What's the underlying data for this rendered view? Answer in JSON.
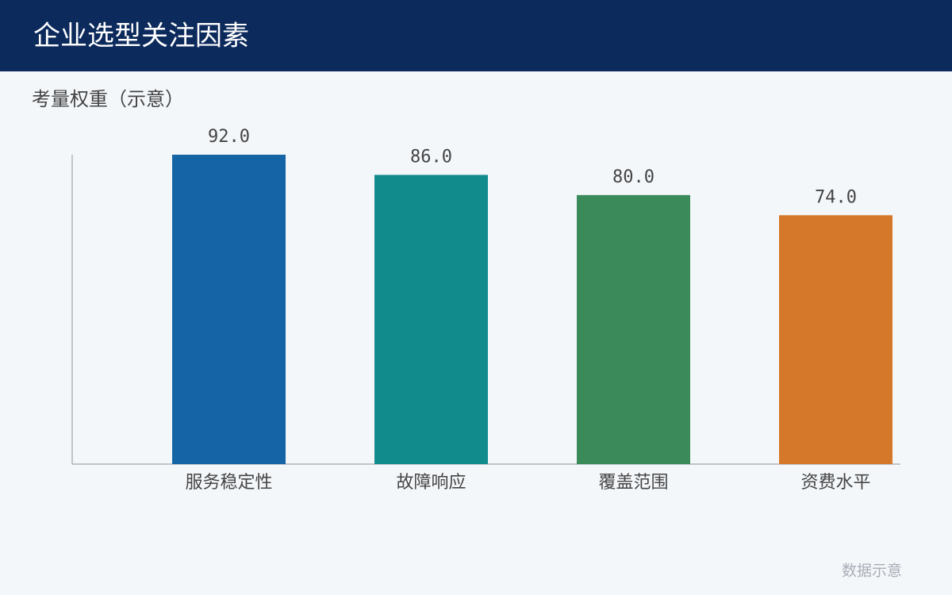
{
  "chart_data": {
    "type": "bar",
    "title": "企业选型关注因素",
    "subtitle": "考量权重（示意）",
    "categories": [
      "服务稳定性",
      "故障响应",
      "覆盖范围",
      "资费水平"
    ],
    "values": [
      92,
      86,
      80,
      74
    ],
    "value_labels": [
      "92.0",
      "86.0",
      "80.0",
      "74.0"
    ],
    "colors": [
      "#1565a6",
      "#128b8c",
      "#3a8a5a",
      "#d6782a"
    ],
    "ylim": [
      0,
      92
    ],
    "note": "数据示意"
  }
}
